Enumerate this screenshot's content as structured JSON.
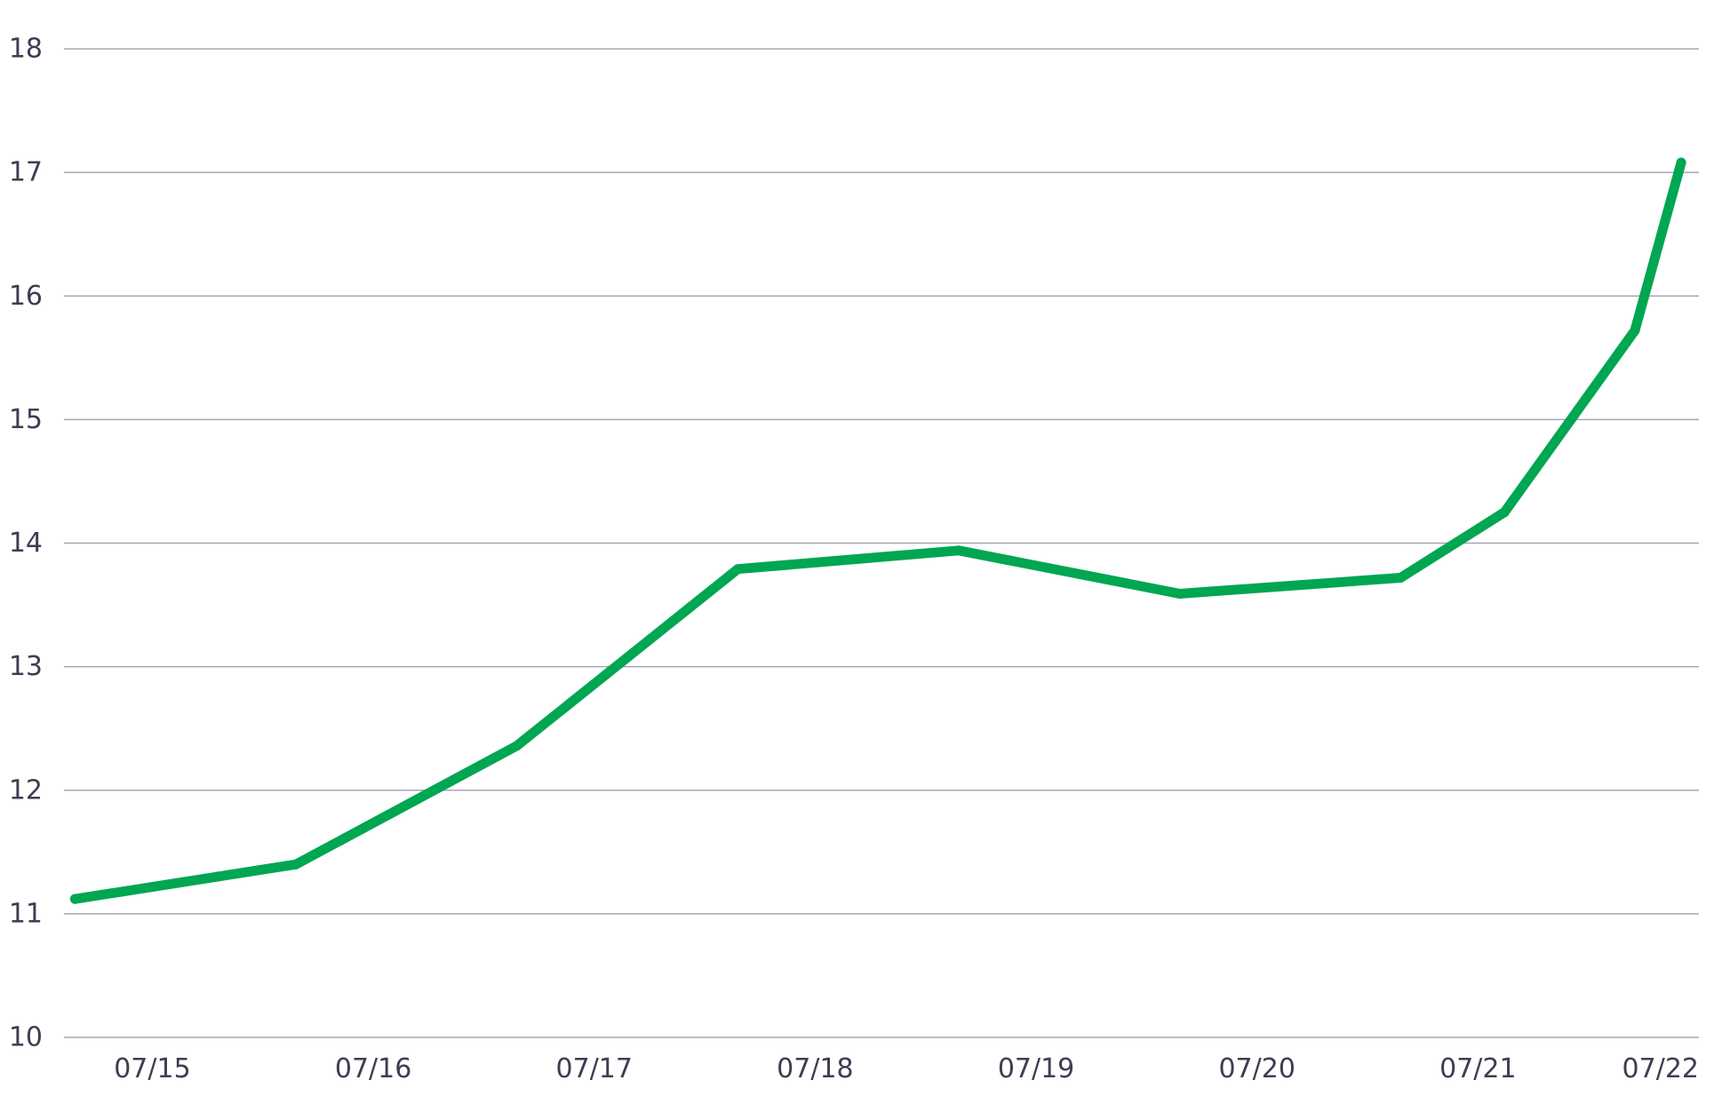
{
  "chart_data": {
    "type": "line",
    "title": "",
    "xlabel": "",
    "ylabel": "",
    "ylim": [
      10,
      18
    ],
    "y_ticks": [
      "10",
      "11",
      "12",
      "13",
      "14",
      "15",
      "16",
      "17",
      "18"
    ],
    "x_ticks": [
      {
        "value": 0.35,
        "label": "07/15"
      },
      {
        "value": 1.35,
        "label": "07/16"
      },
      {
        "value": 2.35,
        "label": "07/17"
      },
      {
        "value": 3.35,
        "label": "07/18"
      },
      {
        "value": 4.35,
        "label": "07/19"
      },
      {
        "value": 5.35,
        "label": "07/20"
      },
      {
        "value": 6.35,
        "label": "07/21"
      },
      {
        "value": 7.35,
        "label": "07/22"
      }
    ],
    "xlim": [
      -0.05,
      7.35
    ],
    "grid": true,
    "legend": "none",
    "series": [
      {
        "color": "#00a651",
        "points": [
          {
            "x": 0.0,
            "y": 11.12
          },
          {
            "x": 1.0,
            "y": 11.4
          },
          {
            "x": 2.0,
            "y": 12.36
          },
          {
            "x": 3.0,
            "y": 13.79
          },
          {
            "x": 4.0,
            "y": 13.94
          },
          {
            "x": 5.0,
            "y": 13.59
          },
          {
            "x": 6.0,
            "y": 13.72
          },
          {
            "x": 6.47,
            "y": 14.25
          },
          {
            "x": 7.06,
            "y": 15.72
          },
          {
            "x": 7.27,
            "y": 17.08
          }
        ]
      }
    ]
  }
}
